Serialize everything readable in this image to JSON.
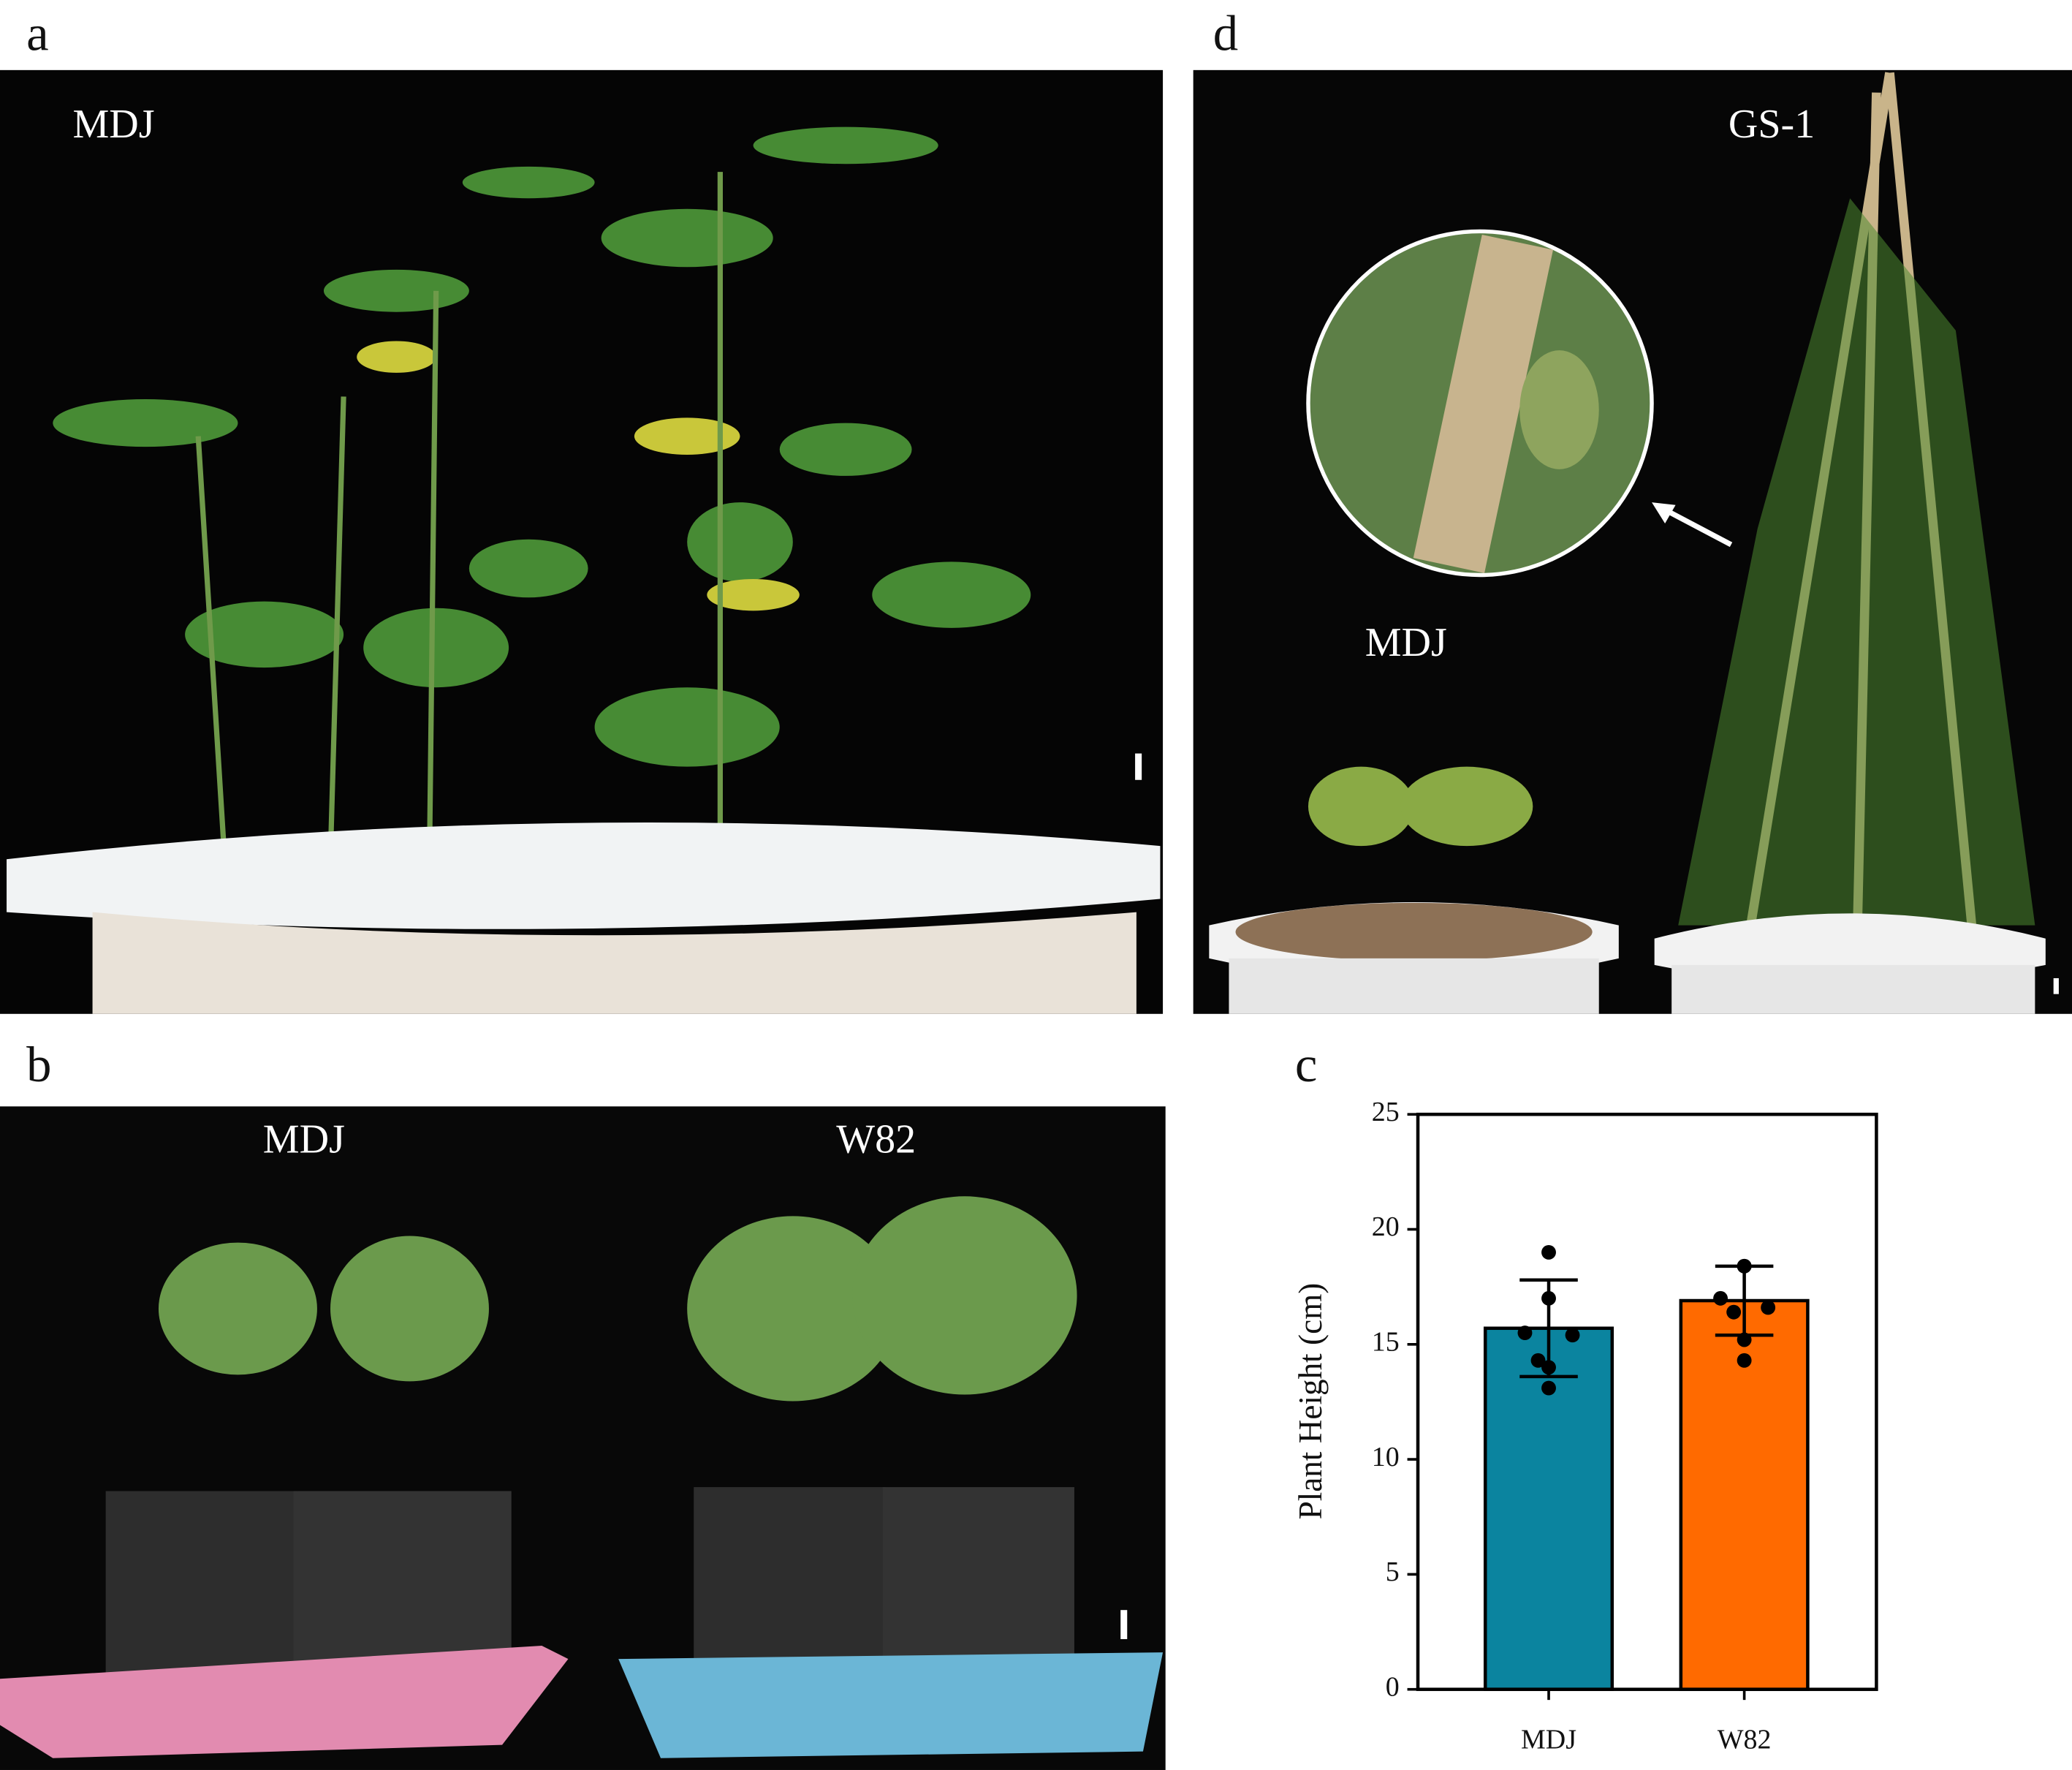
{
  "panels": {
    "a": {
      "letter": "a",
      "labels": [
        "MDJ"
      ]
    },
    "b": {
      "letter": "b",
      "labels": [
        "MDJ",
        "W82"
      ]
    },
    "c": {
      "letter": "c"
    },
    "d": {
      "letter": "d",
      "labels": [
        "GS-1",
        "MDJ"
      ]
    }
  },
  "chart_data": {
    "type": "bar",
    "ylabel": "Plant Height (cm)",
    "categories": [
      "MDJ",
      "W82"
    ],
    "values": [
      15.7,
      16.9
    ],
    "errors": [
      2.1,
      1.5
    ],
    "colors": [
      "#0b849f",
      "#ff6a00"
    ],
    "points": [
      [
        19.0,
        17.0,
        15.5,
        15.4,
        14.3,
        14.0,
        13.1
      ],
      [
        18.4,
        18.4,
        17.0,
        16.6,
        16.4,
        15.2,
        14.3
      ]
    ],
    "ylim": [
      0,
      25
    ],
    "yticks": [
      0,
      5,
      10,
      15,
      20,
      25
    ]
  }
}
